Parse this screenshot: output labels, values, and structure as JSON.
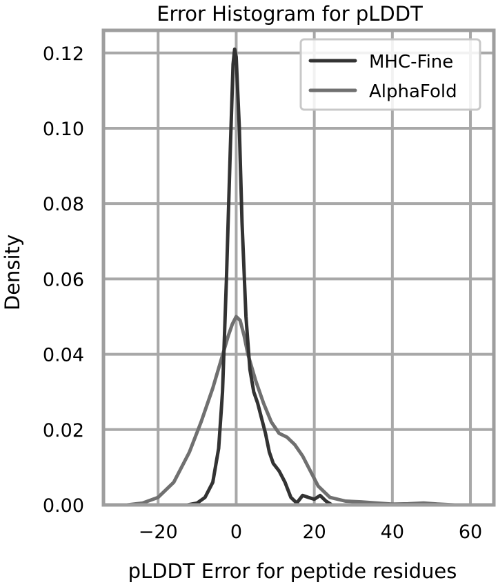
{
  "chart_data": {
    "type": "line",
    "title": "Error Histogram for pLDDT",
    "xlabel": "pLDDT Error for peptide residues",
    "ylabel": "Density",
    "xlim": [
      -34,
      66
    ],
    "ylim": [
      0,
      0.126
    ],
    "x_ticks": [
      -20,
      0,
      20,
      40,
      60
    ],
    "x_tick_labels": [
      "−20",
      "0",
      "20",
      "40",
      "60"
    ],
    "y_ticks": [
      0.0,
      0.02,
      0.04,
      0.06,
      0.08,
      0.1,
      0.12
    ],
    "y_tick_labels": [
      "0.00",
      "0.02",
      "0.04",
      "0.06",
      "0.08",
      "0.10",
      "0.12"
    ],
    "grid": true,
    "legend_position": "top-right",
    "series": [
      {
        "name": "MHC-Fine",
        "color": "#333333",
        "points": [
          [
            -12.5,
            0.0
          ],
          [
            -10,
            0.0005
          ],
          [
            -8,
            0.002
          ],
          [
            -6,
            0.006
          ],
          [
            -4.5,
            0.015
          ],
          [
            -3.5,
            0.03
          ],
          [
            -2.5,
            0.06
          ],
          [
            -1.5,
            0.095
          ],
          [
            -0.8,
            0.117
          ],
          [
            -0.4,
            0.121
          ],
          [
            0,
            0.119
          ],
          [
            0.8,
            0.1
          ],
          [
            1.5,
            0.075
          ],
          [
            2.5,
            0.05
          ],
          [
            3.5,
            0.036
          ],
          [
            4.5,
            0.03
          ],
          [
            5.5,
            0.027
          ],
          [
            6.5,
            0.023
          ],
          [
            7.5,
            0.019
          ],
          [
            8.5,
            0.014
          ],
          [
            9.5,
            0.011
          ],
          [
            11,
            0.009
          ],
          [
            12.5,
            0.006
          ],
          [
            14,
            0.002
          ],
          [
            15.5,
            0.0005
          ],
          [
            17,
            0.0025
          ],
          [
            18.5,
            0.002
          ],
          [
            20,
            0.0015
          ],
          [
            21.5,
            0.0025
          ],
          [
            23,
            0.001
          ],
          [
            24.5,
            0.0
          ]
        ]
      },
      {
        "name": "AlphaFold",
        "color": "#707070",
        "points": [
          [
            -28,
            0.0
          ],
          [
            -24,
            0.0005
          ],
          [
            -20,
            0.002
          ],
          [
            -16,
            0.006
          ],
          [
            -12,
            0.014
          ],
          [
            -9,
            0.022
          ],
          [
            -6,
            0.031
          ],
          [
            -4,
            0.038
          ],
          [
            -2,
            0.045
          ],
          [
            -1,
            0.048
          ],
          [
            0,
            0.05
          ],
          [
            1,
            0.049
          ],
          [
            2,
            0.045
          ],
          [
            3,
            0.04
          ],
          [
            5,
            0.033
          ],
          [
            7,
            0.027
          ],
          [
            9,
            0.022
          ],
          [
            11,
            0.019
          ],
          [
            13,
            0.018
          ],
          [
            15,
            0.016
          ],
          [
            17,
            0.013
          ],
          [
            19,
            0.009
          ],
          [
            21,
            0.005
          ],
          [
            24,
            0.002
          ],
          [
            28,
            0.001
          ],
          [
            32,
            0.0008
          ],
          [
            36,
            0.0005
          ],
          [
            40,
            0.0002
          ],
          [
            44,
            0.0003
          ],
          [
            48,
            0.0005
          ],
          [
            52,
            0.0002
          ],
          [
            56,
            0.0
          ]
        ]
      }
    ]
  }
}
